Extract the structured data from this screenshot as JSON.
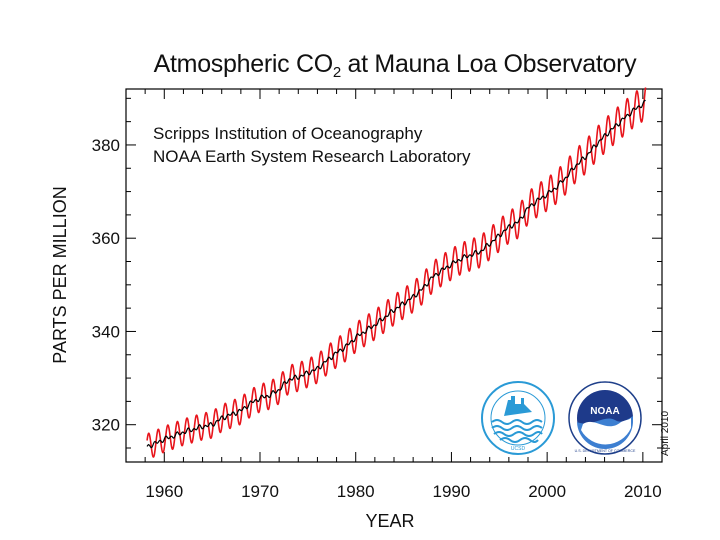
{
  "title_main": "Atmospheric CO",
  "title_sub": "2",
  "title_rest": " at Mauna Loa Observatory",
  "institutions": [
    "Scripps Institution of Oceanography",
    "NOAA Earth System Research Laboratory"
  ],
  "date_stamp": "April 2010",
  "logos": {
    "scripps": {
      "icon": "scripps-logo",
      "ring_text": "SCRIPPS INSTITUTION OF OCEANOGRAPHY",
      "bottom_text": "UCSD"
    },
    "noaa": {
      "icon": "noaa-logo",
      "center_text": "NOAA",
      "ring_text": "NATIONAL OCEANIC AND ATMOSPHERIC ADMINISTRATION",
      "bottom_text": "U.S. DEPARTMENT OF COMMERCE"
    }
  },
  "chart_data": {
    "type": "line",
    "title": "Atmospheric CO2 at Mauna Loa Observatory",
    "xlabel": "YEAR",
    "ylabel": "PARTS PER MILLION",
    "xlim": [
      1956,
      2012
    ],
    "ylim": [
      312,
      392
    ],
    "xticks": [
      1960,
      1970,
      1980,
      1990,
      2000,
      2010
    ],
    "yticks": [
      320,
      340,
      360,
      380
    ],
    "grid": false,
    "series": [
      {
        "color": "#e8141b",
        "style": "monthly values with seasonal cycle",
        "x": [
          1958.2,
          1959,
          1960,
          1961,
          1962,
          1963,
          1964,
          1965,
          1966,
          1967,
          1968,
          1969,
          1970,
          1971,
          1972,
          1973,
          1974,
          1975,
          1976,
          1977,
          1978,
          1979,
          1980,
          1981,
          1982,
          1983,
          1984,
          1985,
          1986,
          1987,
          1988,
          1989,
          1990,
          1991,
          1992,
          1993,
          1994,
          1995,
          1996,
          1997,
          1998,
          1999,
          2000,
          2001,
          2002,
          2003,
          2004,
          2005,
          2006,
          2007,
          2008,
          2009,
          2010.3
        ],
        "trend": [
          315.3,
          315.9,
          316.9,
          317.6,
          318.4,
          319.0,
          319.6,
          320.0,
          321.4,
          322.2,
          323.0,
          324.6,
          325.7,
          326.3,
          327.5,
          329.7,
          330.2,
          331.1,
          332.0,
          333.8,
          335.4,
          336.8,
          338.7,
          340.1,
          341.4,
          343.0,
          344.6,
          346.0,
          347.4,
          349.2,
          351.6,
          353.1,
          354.4,
          355.6,
          356.4,
          357.1,
          358.8,
          360.6,
          362.4,
          363.5,
          366.5,
          368.1,
          369.4,
          371.0,
          373.1,
          375.6,
          377.4,
          379.8,
          381.9,
          383.8,
          385.6,
          387.4,
          389.2
        ],
        "seasonal_amplitude_ppm": 3.2
      },
      {
        "color": "#000000",
        "style": "seasonally adjusted trend",
        "x": [
          1958.2,
          1959,
          1960,
          1961,
          1962,
          1963,
          1964,
          1965,
          1966,
          1967,
          1968,
          1969,
          1970,
          1971,
          1972,
          1973,
          1974,
          1975,
          1976,
          1977,
          1978,
          1979,
          1980,
          1981,
          1982,
          1983,
          1984,
          1985,
          1986,
          1987,
          1988,
          1989,
          1990,
          1991,
          1992,
          1993,
          1994,
          1995,
          1996,
          1997,
          1998,
          1999,
          2000,
          2001,
          2002,
          2003,
          2004,
          2005,
          2006,
          2007,
          2008,
          2009,
          2010.3
        ],
        "values": [
          315.3,
          315.9,
          316.9,
          317.6,
          318.4,
          319.0,
          319.6,
          320.0,
          321.4,
          322.2,
          323.0,
          324.6,
          325.7,
          326.3,
          327.5,
          329.7,
          330.2,
          331.1,
          332.0,
          333.8,
          335.4,
          336.8,
          338.7,
          340.1,
          341.4,
          343.0,
          344.6,
          346.0,
          347.4,
          349.2,
          351.6,
          353.1,
          354.4,
          355.6,
          356.4,
          357.1,
          358.8,
          360.6,
          362.4,
          363.5,
          366.5,
          368.1,
          369.4,
          371.0,
          373.1,
          375.6,
          377.4,
          379.8,
          381.9,
          383.8,
          385.6,
          387.4,
          389.2
        ]
      }
    ]
  }
}
